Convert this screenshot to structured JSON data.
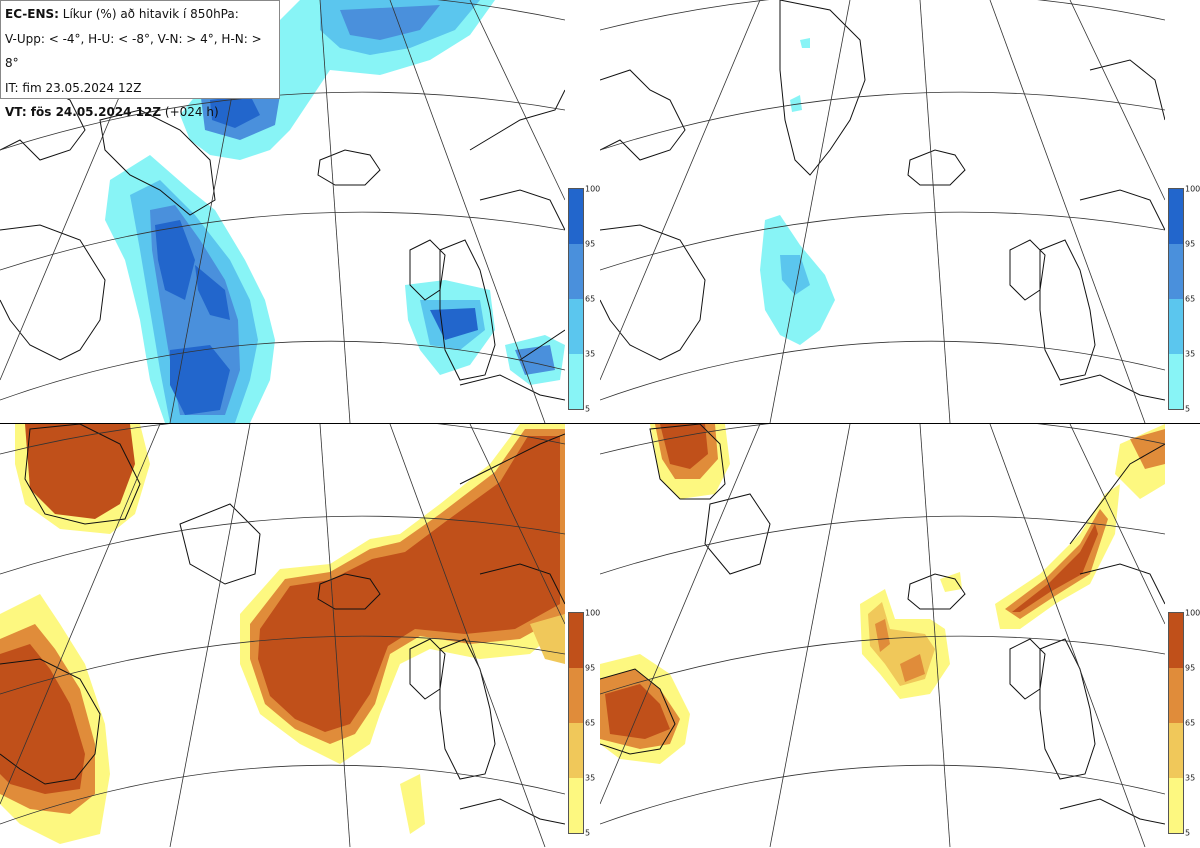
{
  "info": {
    "model": "EC-ENS:",
    "title": "Líkur (%) að hitavik í 850hPa:",
    "thresholds": "V-Upp: < -4°, H-U: < -8°, V-N: > 4°, H-N: > 8°",
    "issue_time": "IT: fim 23.05.2024 12Z",
    "valid_label": "VT: fös 24.05.2024 12Z",
    "lead": "(+024 h)"
  },
  "legend": {
    "ticks": [
      "100",
      "95",
      "65",
      "35",
      "5"
    ],
    "cold_colors": [
      "#2266cc",
      "#4a90dc",
      "#5bc6ee",
      "#88f4f6"
    ],
    "warm_colors": [
      "#c0501a",
      "#e08c3a",
      "#f0c85a",
      "#fdf880"
    ]
  },
  "panels": [
    {
      "id": "top-left",
      "variable": "cold anomaly < -4°"
    },
    {
      "id": "top-right",
      "variable": "cold anomaly < -8°"
    },
    {
      "id": "bottom-left",
      "variable": "warm anomaly > 4°"
    },
    {
      "id": "bottom-right",
      "variable": "warm anomaly > 8°"
    }
  ]
}
